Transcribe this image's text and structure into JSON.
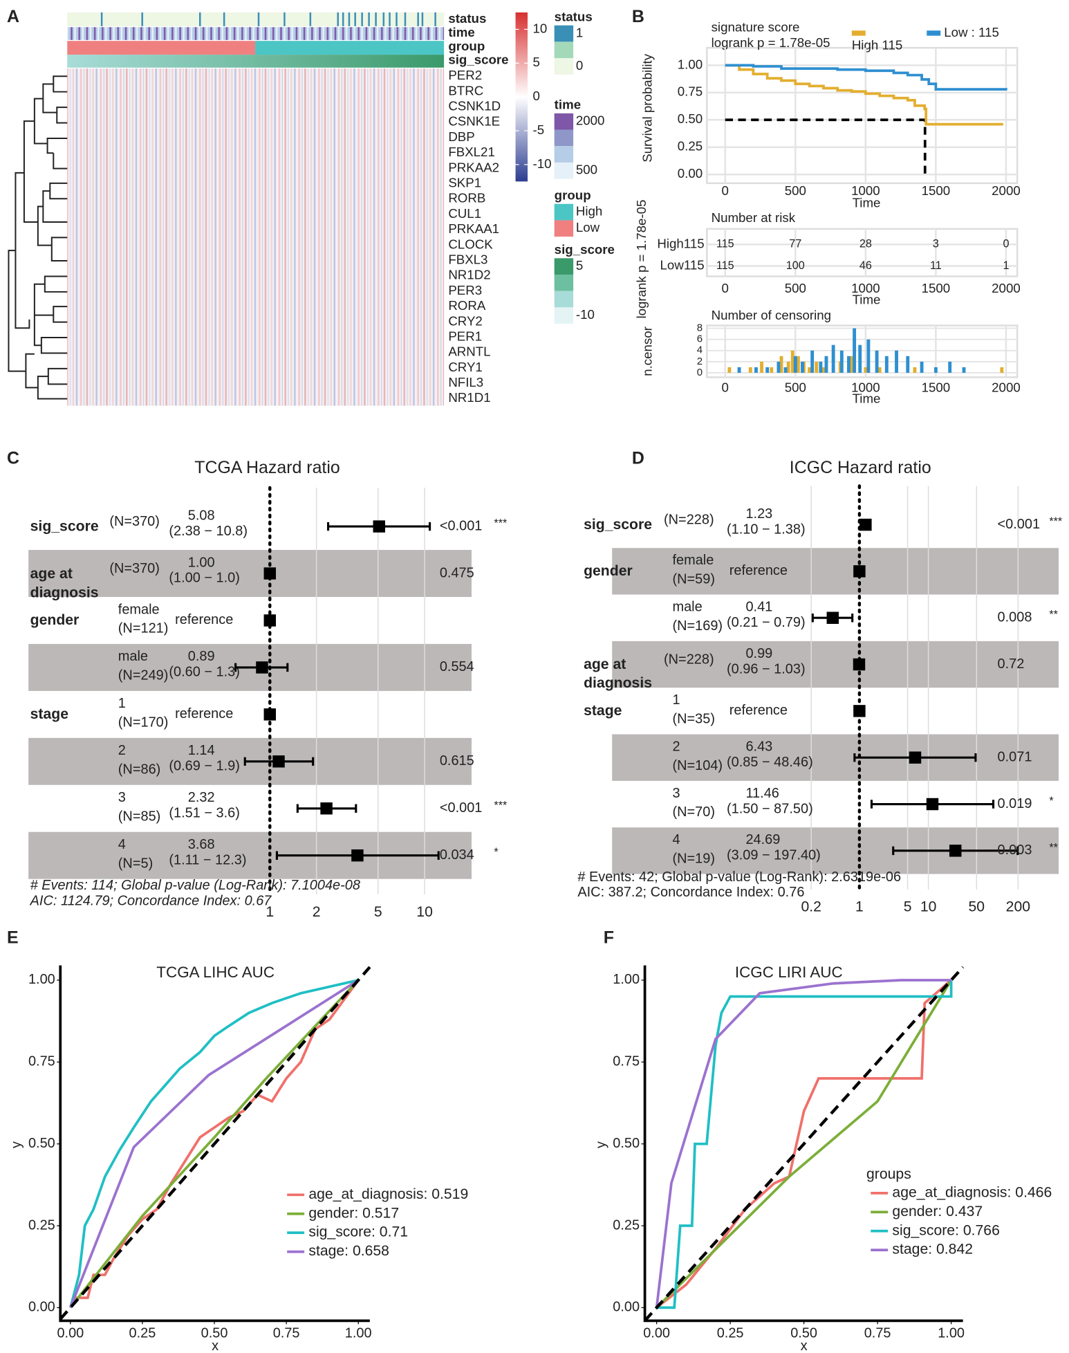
{
  "chart_data": [
    {
      "type": "heatmap",
      "panel": "A",
      "annotations": [
        "status",
        "time",
        "group",
        "sig_score"
      ],
      "rows": [
        "PER2",
        "BTRC",
        "CSNK1D",
        "CSNK1E",
        "DBP",
        "FBXL21",
        "PRKAA2",
        "SKP1",
        "RORB",
        "CUL1",
        "PRKAA1",
        "CLOCK",
        "FBXL3",
        "NR1D2",
        "PER3",
        "RORA",
        "CRY2",
        "PER1",
        "ARNTL",
        "CRY1",
        "NFIL3",
        "NR1D1"
      ],
      "colorbar": {
        "lim": [
          -12.5,
          12.5
        ],
        "ticks": [
          10,
          5,
          0,
          -5,
          -10
        ],
        "colors": [
          "#2c3d91",
          "#ffffff",
          "#d73030"
        ]
      },
      "legends": [
        {
          "title": "status",
          "labels": [
            1,
            0
          ],
          "colors": [
            "#3a8fb7",
            "#a3d9b9",
            "#eef6e4"
          ]
        },
        {
          "title": "time",
          "labels": [
            2000,
            500
          ],
          "colors": [
            "#7e57a8",
            "#8e97c8",
            "#b5cde6",
            "#e6f0f8"
          ]
        },
        {
          "title": "group",
          "labels": [
            "High",
            "Low"
          ],
          "colors": [
            "#4cc5c5",
            "#f08080"
          ]
        },
        {
          "title": "sig_score",
          "labels": [
            5,
            -10
          ],
          "colors": [
            "#3a9a6a",
            "#6cc0a0",
            "#a8dcd8",
            "#e4f4f4"
          ]
        }
      ]
    },
    {
      "type": "km",
      "panel": "B",
      "title": "signature score",
      "subtitle": "logrank p = 1.78e-05",
      "side_label": "logrank p = 1.78e-05",
      "ylabel": "Survival probability",
      "xlabel": "Time",
      "xlim": [
        -130,
        2080
      ],
      "ylim": [
        -0.08,
        1.16
      ],
      "xticks": [
        0,
        500,
        1000,
        1500,
        2000
      ],
      "yticks": [
        {
          "value": 0,
          "label": "0.00"
        },
        {
          "value": 0.25,
          "label": "0.25"
        },
        {
          "value": 0.5,
          "label": "0.50"
        },
        {
          "value": 0.75,
          "label": "0.75"
        },
        {
          "value": 1,
          "label": "1.00"
        }
      ],
      "series": [
        {
          "name": "High 115",
          "color": "#e3ae2f",
          "x": [
            0,
            100,
            200,
            300,
            400,
            500,
            600,
            700,
            800,
            900,
            1000,
            1100,
            1200,
            1300,
            1350,
            1420,
            1430,
            1980
          ],
          "values": [
            1,
            0.96,
            0.92,
            0.88,
            0.86,
            0.83,
            0.81,
            0.79,
            0.77,
            0.76,
            0.74,
            0.72,
            0.7,
            0.68,
            0.63,
            0.6,
            0.46,
            0.46
          ]
        },
        {
          "name": "Low : 115",
          "color": "#2e8fd0",
          "x": [
            0,
            200,
            400,
            600,
            800,
            1000,
            1200,
            1300,
            1400,
            1450,
            1500,
            2000
          ],
          "values": [
            1,
            0.99,
            0.97,
            0.97,
            0.96,
            0.95,
            0.93,
            0.91,
            0.87,
            0.83,
            0.78,
            0.77
          ]
        }
      ],
      "median": {
        "x": 1423,
        "y": 0.5
      },
      "risk": {
        "title": "Number at risk",
        "rows": [
          "High115",
          "Low115"
        ],
        "x": [
          0,
          500,
          1000,
          1500,
          2000
        ],
        "values": [
          [
            115,
            77,
            28,
            3,
            0
          ],
          [
            115,
            100,
            46,
            11,
            1
          ]
        ]
      },
      "censor": {
        "title": "Number of censoring",
        "ylabel": "n.censor",
        "ylim": [
          -0.8,
          8.5
        ],
        "yticks": [
          0,
          2,
          4,
          6,
          8
        ],
        "series": [
          {
            "color": "#e3ae2f",
            "x": [
              30,
              180,
              260,
              330,
              400,
              450,
              480,
              520,
              560,
              600,
              650,
              700,
              820,
              900,
              1000,
              1100,
              1350,
              1970
            ],
            "values": [
              1,
              1,
              2,
              1,
              3,
              2,
              4,
              3,
              2,
              1,
              2,
              1,
              2,
              3,
              1,
              1,
              1,
              1
            ]
          },
          {
            "color": "#2e8fd0",
            "x": [
              100,
              220,
              300,
              380,
              430,
              500,
              550,
              620,
              680,
              720,
              770,
              830,
              880,
              920,
              960,
              1020,
              1080,
              1150,
              1220,
              1300,
              1400,
              1500,
              1600,
              1700
            ],
            "values": [
              1,
              1,
              1,
              2,
              1,
              3,
              2,
              4,
              2,
              3,
              5,
              4,
              3,
              8,
              5,
              6,
              4,
              3,
              4,
              3,
              2,
              1,
              2,
              1
            ]
          }
        ]
      }
    },
    {
      "type": "forest",
      "panel": "C",
      "title": "TCGA Hazard ratio",
      "log": true,
      "xlim": [
        0.5,
        13
      ],
      "xticks": [
        1,
        2,
        5,
        10
      ],
      "rows": [
        {
          "variable": "sig_score",
          "n": "(N=370)",
          "hr": 5.08,
          "ci": [
            2.38,
            10.8
          ],
          "ci_label": "(2.38 − 10.8)",
          "p": "<0.001",
          "stars": "***"
        },
        {
          "variable": "age at diagnosis",
          "n": "(N=370)",
          "hr": 1,
          "hr_label": "1.00",
          "ci": [
            1,
            1
          ],
          "ci_label": "(1.00 − 1.0)",
          "p": 0.475
        },
        {
          "variable": "gender",
          "level": "female",
          "n": "(N=121)",
          "hr": 1,
          "reference": "reference"
        },
        {
          "level": "male",
          "n": "(N=249)",
          "hr": 0.89,
          "ci": [
            0.6,
            1.3
          ],
          "ci_label": "(0.60 − 1.3)",
          "p": 0.554
        },
        {
          "variable": "stage",
          "level": "1",
          "n": "(N=170)",
          "hr": 1,
          "reference": "reference"
        },
        {
          "level": "2",
          "n": "(N=86)",
          "hr": 1.14,
          "ci": [
            0.69,
            1.9
          ],
          "ci_label": "(0.69 − 1.9)",
          "p": 0.615
        },
        {
          "level": "3",
          "n": "(N=85)",
          "hr": 2.32,
          "ci": [
            1.51,
            3.6
          ],
          "ci_label": "(1.51 − 3.6)",
          "p": "<0.001",
          "stars": "***"
        },
        {
          "level": "4",
          "n": "(N=5)",
          "hr": 3.68,
          "ci": [
            1.11,
            12.3
          ],
          "ci_label": "(1.11 − 12.3)",
          "p": 0.034,
          "stars": "*"
        }
      ],
      "footer": [
        "# Events: 114; Global p-value (Log-Rank): 7.1004e-08",
        "AIC: 1124.79; Concordance Index: 0.67"
      ]
    },
    {
      "type": "forest",
      "panel": "D",
      "title": "ICGC Hazard ratio",
      "log": true,
      "xlim": [
        0.15,
        300
      ],
      "xticks": [
        0.2,
        1,
        5,
        10,
        50,
        200
      ],
      "rows": [
        {
          "variable": "sig_score",
          "n": "(N=228)",
          "hr": 1.23,
          "ci": [
            1.1,
            1.38
          ],
          "ci_label": "(1.10 − 1.38)",
          "p": "<0.001",
          "stars": "***"
        },
        {
          "variable": "gender",
          "level": "female",
          "n": "(N=59)",
          "hr": 1,
          "reference": "reference"
        },
        {
          "level": "male",
          "n": "(N=169)",
          "hr": 0.41,
          "ci": [
            0.21,
            0.79
          ],
          "ci_label": "(0.21 − 0.79)",
          "p": 0.008,
          "stars": "**"
        },
        {
          "variable": "age at diagnosis",
          "n": "(N=228)",
          "hr": 0.99,
          "ci": [
            0.96,
            1.03
          ],
          "ci_label": "(0.96 − 1.03)",
          "p": 0.72
        },
        {
          "variable": "stage",
          "level": "1",
          "n": "(N=35)",
          "hr": 1,
          "reference": "reference"
        },
        {
          "level": "2",
          "n": "(N=104)",
          "hr": 6.43,
          "ci": [
            0.85,
            48.46
          ],
          "ci_label": "(0.85 − 48.46)",
          "p": 0.071
        },
        {
          "level": "3",
          "n": "(N=70)",
          "hr": 11.46,
          "ci": [
            1.5,
            87.5
          ],
          "ci_label": "(1.50 − 87.50)",
          "p": 0.019,
          "stars": "*"
        },
        {
          "level": "4",
          "n": "(N=19)",
          "hr": 24.69,
          "ci": [
            3.09,
            197.4
          ],
          "ci_label": "(3.09 − 197.40)",
          "p": 0.003,
          "stars": "**"
        }
      ],
      "footer": [
        "# Events: 42; Global p-value (Log-Rank): 2.6319e-06",
        "AIC: 387.2; Concordance Index: 0.76"
      ]
    },
    {
      "type": "roc",
      "panel": "E",
      "title": "TCGA LIHC AUC",
      "xlabel": "x",
      "ylabel": "y",
      "xlim": [
        -0.035,
        1.04
      ],
      "ylim": [
        -0.04,
        1.045
      ],
      "xticks": [
        {
          "value": 0,
          "label": "0.00"
        },
        {
          "value": 0.25,
          "label": "0.25"
        },
        {
          "value": 0.5,
          "label": "0.50"
        },
        {
          "value": 0.75,
          "label": "0.75"
        },
        {
          "value": 1,
          "label": "1.00"
        }
      ],
      "yticks": [
        {
          "value": 0,
          "label": "0.00"
        },
        {
          "value": 0.25,
          "label": "0.25"
        },
        {
          "value": 0.5,
          "label": "0.50"
        },
        {
          "value": 0.75,
          "label": "0.75"
        },
        {
          "value": 1,
          "label": "1.00"
        }
      ],
      "series": [
        {
          "name": "age_at_diagnosis: 0.519",
          "color": "#f0706a",
          "x": [
            0,
            0.02,
            0.06,
            0.08,
            0.12,
            0.15,
            0.2,
            0.25,
            0.3,
            0.35,
            0.4,
            0.45,
            0.5,
            0.55,
            0.6,
            0.65,
            0.7,
            0.75,
            0.8,
            0.85,
            0.9,
            1
          ],
          "values": [
            0,
            0.03,
            0.03,
            0.1,
            0.1,
            0.15,
            0.22,
            0.27,
            0.3,
            0.38,
            0.45,
            0.52,
            0.55,
            0.58,
            0.6,
            0.65,
            0.63,
            0.7,
            0.75,
            0.85,
            0.88,
            1
          ]
        },
        {
          "name": "gender: 0.517",
          "color": "#7cae38",
          "x": [
            0,
            0.25,
            0.5,
            0.68,
            1
          ],
          "values": [
            0,
            0.28,
            0.52,
            0.7,
            1
          ]
        },
        {
          "name": "sig_score: 0.71",
          "color": "#1fbfc4",
          "x": [
            0,
            0.03,
            0.05,
            0.08,
            0.12,
            0.17,
            0.22,
            0.28,
            0.33,
            0.38,
            0.45,
            0.5,
            0.55,
            0.62,
            0.7,
            0.8,
            0.9,
            1
          ],
          "values": [
            0,
            0.1,
            0.25,
            0.3,
            0.4,
            0.48,
            0.55,
            0.63,
            0.68,
            0.73,
            0.78,
            0.83,
            0.86,
            0.9,
            0.93,
            0.96,
            0.98,
            1
          ]
        },
        {
          "name": "stage: 0.658",
          "color": "#9b72cf",
          "x": [
            0,
            0.22,
            0.48,
            1
          ],
          "values": [
            0,
            0.49,
            0.71,
            1
          ]
        }
      ]
    },
    {
      "type": "roc",
      "panel": "F",
      "title": "ICGC LIRI AUC",
      "xlabel": "x",
      "ylabel": "y",
      "legend_title": "groups",
      "xlim": [
        -0.04,
        1.04
      ],
      "ylim": [
        -0.04,
        1.045
      ],
      "xticks": [
        {
          "value": 0,
          "label": "0.00"
        },
        {
          "value": 0.25,
          "label": "0.25"
        },
        {
          "value": 0.5,
          "label": "0.50"
        },
        {
          "value": 0.75,
          "label": "0.75"
        },
        {
          "value": 1,
          "label": "1.00"
        }
      ],
      "yticks": [
        {
          "value": 0,
          "label": "0.00"
        },
        {
          "value": 0.25,
          "label": "0.25"
        },
        {
          "value": 0.5,
          "label": "0.50"
        },
        {
          "value": 0.75,
          "label": "0.75"
        },
        {
          "value": 1,
          "label": "1.00"
        }
      ],
      "series": [
        {
          "name": "age_at_diagnosis: 0.466",
          "color": "#f0706a",
          "x": [
            0,
            0.1,
            0.2,
            0.3,
            0.4,
            0.45,
            0.5,
            0.55,
            0.75,
            0.9,
            0.91,
            1
          ],
          "values": [
            0,
            0.07,
            0.18,
            0.3,
            0.38,
            0.4,
            0.6,
            0.7,
            0.7,
            0.7,
            0.93,
            1
          ]
        },
        {
          "name": "gender: 0.437",
          "color": "#7cae38",
          "x": [
            0,
            0.45,
            0.75,
            1
          ],
          "values": [
            0,
            0.4,
            0.63,
            1
          ]
        },
        {
          "name": "sig_score: 0.766",
          "color": "#1fbfc4",
          "x": [
            0,
            0.06,
            0.08,
            0.12,
            0.13,
            0.17,
            0.2,
            0.22,
            0.25,
            1,
            1
          ],
          "values": [
            0,
            0,
            0.25,
            0.25,
            0.5,
            0.5,
            0.8,
            0.9,
            0.95,
            0.95,
            1
          ]
        },
        {
          "name": "stage: 0.842",
          "color": "#9b72cf",
          "x": [
            0,
            0.05,
            0.2,
            0.35,
            0.6,
            0.83,
            1
          ],
          "values": [
            0,
            0.38,
            0.82,
            0.96,
            0.99,
            1,
            1
          ]
        }
      ]
    }
  ]
}
